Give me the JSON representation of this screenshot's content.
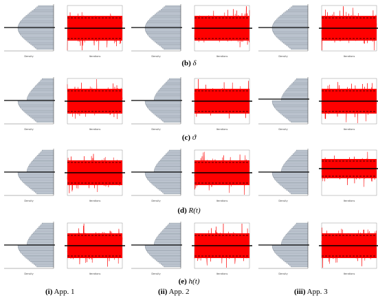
{
  "rows": [
    {
      "caption_letter": "(b)",
      "caption_symbol": "δ"
    },
    {
      "caption_letter": "(c)",
      "caption_symbol": "ϑ"
    },
    {
      "caption_letter": "(d)",
      "caption_symbol": "R(t)"
    },
    {
      "caption_letter": "(e)",
      "caption_symbol": "h(t)"
    }
  ],
  "columns": [
    {
      "label_letter": "(i)",
      "label_text": "App. 1"
    },
    {
      "label_letter": "(ii)",
      "label_text": "App. 2"
    },
    {
      "label_letter": "(iii)",
      "label_text": "App. 3"
    }
  ],
  "axis_labels": {
    "density": "Density",
    "iterations": "Iterations"
  },
  "colors": {
    "trace": "#ff0000",
    "mean_line": "#000000",
    "hist_bar": "#c9d1dc",
    "hist_edge": "#5a6470"
  }
}
